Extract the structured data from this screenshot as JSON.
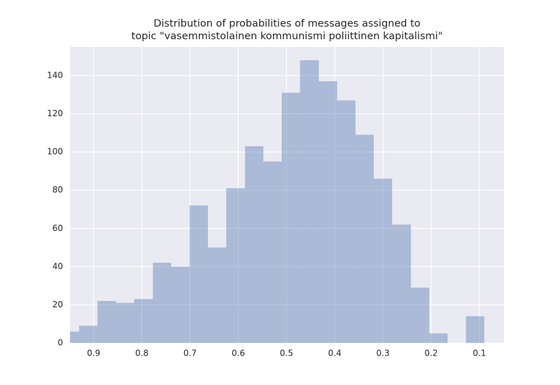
{
  "chart_data": {
    "type": "histogram",
    "title": [
      "Distribution of probabilities of messages assigned to",
      "topic \"vasemmistolainen kommunismi poliittinen kapitalismi\""
    ],
    "bins": [
      0.969,
      0.93,
      0.892,
      0.854,
      0.816,
      0.777,
      0.739,
      0.701,
      0.663,
      0.625,
      0.586,
      0.548,
      0.51,
      0.472,
      0.433,
      0.395,
      0.357,
      0.319,
      0.281,
      0.242,
      0.204,
      0.166,
      0.128,
      0.09
    ],
    "values": [
      6,
      9,
      22,
      21,
      23,
      42,
      40,
      72,
      50,
      81,
      103,
      95,
      131,
      148,
      137,
      127,
      109,
      86,
      62,
      29,
      5,
      0,
      14
    ],
    "color": "#4c72b0",
    "opacity": 0.4,
    "xlim": [
      0.949,
      0.049
    ],
    "xticks": [
      0.9,
      0.8,
      0.7,
      0.6,
      0.5,
      0.4,
      0.3,
      0.2,
      0.1
    ],
    "ylim": [
      0,
      155
    ],
    "yticks": [
      0,
      20,
      40,
      60,
      80,
      100,
      120,
      140
    ],
    "grid": true,
    "background": "#eaeaf2"
  }
}
